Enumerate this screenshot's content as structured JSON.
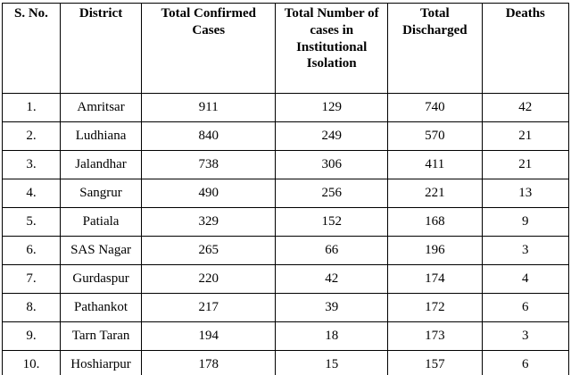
{
  "table": {
    "headers": [
      "S. No.",
      "District",
      "Total Confirmed Cases",
      "Total Number of cases in Institutional Isolation",
      "Total Discharged",
      "Deaths"
    ],
    "column_keys": [
      "sno",
      "district",
      "confirmed-cases",
      "institutional-isolation",
      "discharged",
      "deaths"
    ],
    "rows": [
      [
        "1.",
        "Amritsar",
        "911",
        "129",
        "740",
        "42"
      ],
      [
        "2.",
        "Ludhiana",
        "840",
        "249",
        "570",
        "21"
      ],
      [
        "3.",
        "Jalandhar",
        "738",
        "306",
        "411",
        "21"
      ],
      [
        "4.",
        "Sangrur",
        "490",
        "256",
        "221",
        "13"
      ],
      [
        "5.",
        "Patiala",
        "329",
        "152",
        "168",
        "9"
      ],
      [
        "6.",
        "SAS Nagar",
        "265",
        "66",
        "196",
        "3"
      ],
      [
        "7.",
        "Gurdaspur",
        "220",
        "42",
        "174",
        "4"
      ],
      [
        "8.",
        "Pathankot",
        "217",
        "39",
        "172",
        "6"
      ],
      [
        "9.",
        "Tarn Taran",
        "194",
        "18",
        "173",
        "3"
      ],
      [
        "10.",
        "Hoshiarpur",
        "178",
        "15",
        "157",
        "6"
      ]
    ]
  }
}
